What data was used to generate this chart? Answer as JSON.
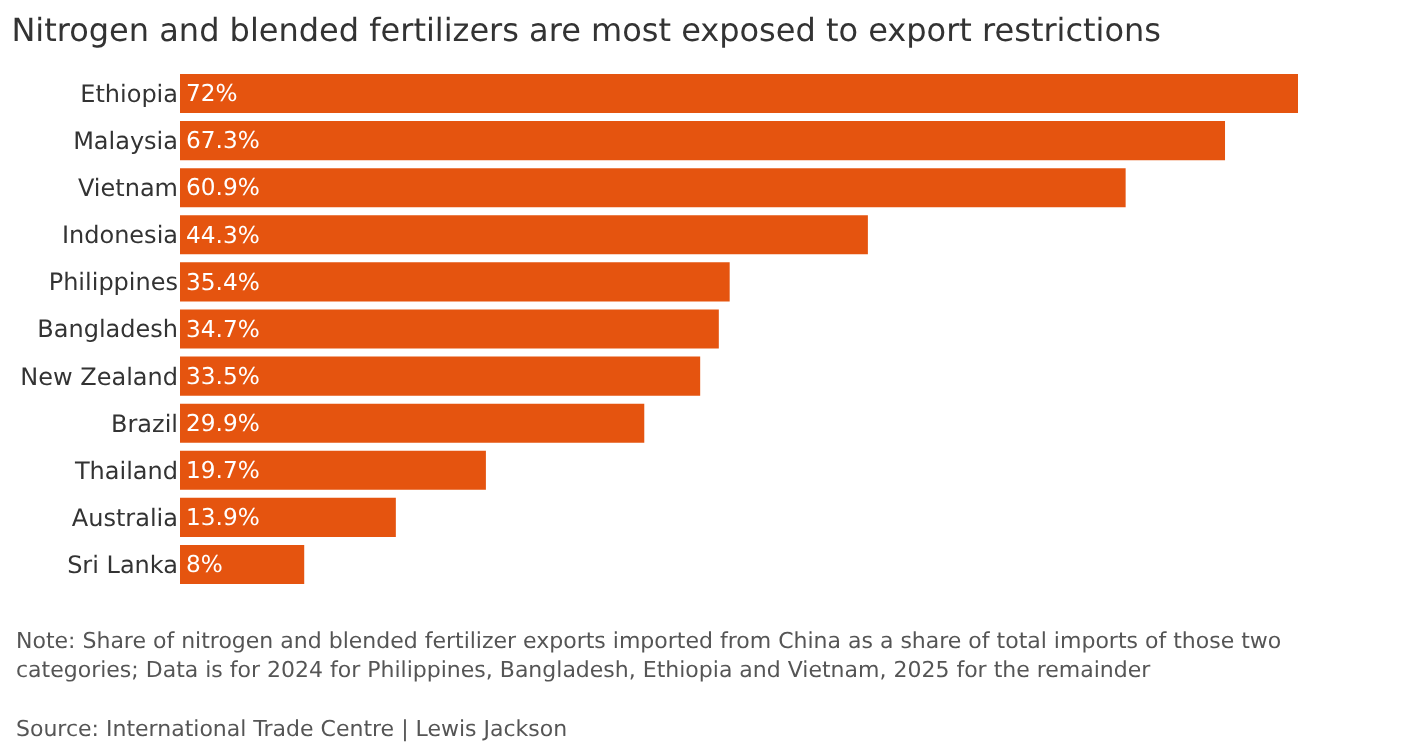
{
  "chart_data": {
    "type": "bar",
    "orientation": "horizontal",
    "title": "Nitrogen and blended fertilizers are most exposed to export restrictions",
    "categories": [
      "Ethiopia",
      "Malaysia",
      "Vietnam",
      "Indonesia",
      "Philippines",
      "Bangladesh",
      "New Zealand",
      "Brazil",
      "Thailand",
      "Australia",
      "Sri Lanka"
    ],
    "values": [
      72,
      67.3,
      60.9,
      44.3,
      35.4,
      34.7,
      33.5,
      29.9,
      19.7,
      13.9,
      8
    ],
    "value_labels": [
      "72%",
      "67.3%",
      "60.9%",
      "44.3%",
      "35.4%",
      "34.7%",
      "33.5%",
      "29.9%",
      "19.7%",
      "13.9%",
      "8%"
    ],
    "color": "#e5540f",
    "grid": false,
    "tick_labels": "y",
    "annotations": [
      "Note: Share of nitrogen and blended fertilizer exports imported from China as a share of total imports of those two categories; Data is for 2024 for Philippines, Bangladesh, Ethiopia and Vietnam, 2025 for the remainder",
      "Source: International Trade Centre | Lewis Jackson"
    ]
  }
}
